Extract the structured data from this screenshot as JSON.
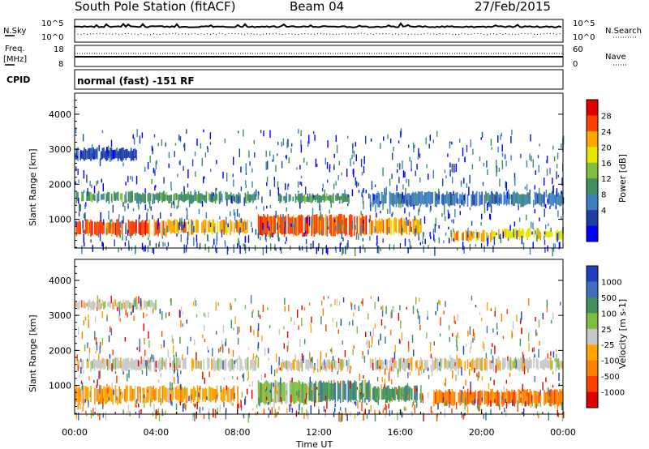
{
  "header": {
    "station": "South Pole Station (fitACF)",
    "beam": "Beam 04",
    "date": "27/Feb/2015"
  },
  "top_panel": {
    "left_label": "N.Sky",
    "left_ticks": [
      "10^5",
      "10^0"
    ],
    "right_label": "N.Search",
    "right_ticks": [
      "10^5",
      "10^0"
    ]
  },
  "freq_panel": {
    "left_label_1": "Freq.",
    "left_label_2": "[MHz]",
    "left_ticks": [
      "18",
      "8"
    ],
    "right_label": "Nave",
    "right_ticks": [
      "60",
      "0"
    ]
  },
  "cpid_panel": {
    "label": "CPID",
    "text": "normal (fast) -151 RF"
  },
  "colors": {
    "power_scale": [
      "#0000ff",
      "#1f3fa8",
      "#3f7fbf",
      "#3f8f5f",
      "#7fbf3f",
      "#e6e600",
      "#ffa500",
      "#ff4000",
      "#e00000"
    ],
    "velocity_scale": [
      "#1f3fc0",
      "#3f6fbf",
      "#3f8f5f",
      "#7fbf3f",
      "#c8c8c8",
      "#ffa500",
      "#ff7f00",
      "#ff4000",
      "#e00000"
    ]
  },
  "chart_data": [
    {
      "type": "heatmap",
      "title": "Power",
      "ylabel": "Slant Range [km]",
      "yticks": [
        1000,
        2000,
        3000,
        4000
      ],
      "ylim": [
        180,
        4600
      ],
      "colorbar_label": "Power [dB]",
      "colorbar_ticks": [
        "4",
        "8",
        "12",
        "16",
        "20",
        "24",
        "28"
      ],
      "bands": [
        {
          "x0": 0.0,
          "x1": 4.5,
          "r0": 550,
          "r1": 950,
          "level": 7
        },
        {
          "x0": 4.5,
          "x1": 8.5,
          "r0": 600,
          "r1": 950,
          "level": 6
        },
        {
          "x0": 9.0,
          "x1": 14.5,
          "r0": 550,
          "r1": 1100,
          "level": 7
        },
        {
          "x0": 14.5,
          "x1": 17.0,
          "r0": 600,
          "r1": 1000,
          "level": 6
        },
        {
          "x0": 0.0,
          "x1": 9.0,
          "r0": 1500,
          "r1": 1750,
          "level": 3
        },
        {
          "x0": 10.0,
          "x1": 13.5,
          "r0": 1500,
          "r1": 1700,
          "level": 3
        },
        {
          "x0": 14.5,
          "x1": 24.0,
          "r0": 1400,
          "r1": 1750,
          "level": 2
        },
        {
          "x0": 0.0,
          "x1": 3.0,
          "r0": 2700,
          "r1": 3000,
          "level": 1
        },
        {
          "x0": 18.5,
          "x1": 20.5,
          "r0": 400,
          "r1": 650,
          "level": 6
        },
        {
          "x0": 20.5,
          "x1": 24.0,
          "r0": 450,
          "r1": 700,
          "level": 5
        }
      ]
    },
    {
      "type": "heatmap",
      "title": "Velocity",
      "ylabel": "Slant Range [km]",
      "yticks": [
        1000,
        2000,
        3000,
        4000
      ],
      "ylim": [
        180,
        4600
      ],
      "xlabel": "Time UT",
      "xticks": [
        "00:00",
        "04:00",
        "08:00",
        "12:00",
        "16:00",
        "20:00",
        "00:00"
      ],
      "colorbar_label": "Velocity [m s-1]",
      "colorbar_ticks": [
        "1000",
        "500",
        "100",
        "25",
        "-25",
        "-100",
        "-500",
        "-1000"
      ],
      "bands": [
        {
          "x0": 0.0,
          "x1": 9.0,
          "r0": 1450,
          "r1": 1750,
          "level": 4
        },
        {
          "x0": 10.0,
          "x1": 13.5,
          "r0": 1450,
          "r1": 1700,
          "level": 4
        },
        {
          "x0": 14.5,
          "x1": 24.0,
          "r0": 1450,
          "r1": 1750,
          "level": 4
        },
        {
          "x0": 0.0,
          "x1": 4.0,
          "r0": 3200,
          "r1": 3400,
          "level": 4
        },
        {
          "x0": 0.0,
          "x1": 2.5,
          "r0": 500,
          "r1": 950,
          "level": 5
        },
        {
          "x0": 2.5,
          "x1": 8.0,
          "r0": 550,
          "r1": 950,
          "level": 5
        },
        {
          "x0": 9.0,
          "x1": 11.5,
          "r0": 500,
          "r1": 1100,
          "level": 3
        },
        {
          "x0": 11.5,
          "x1": 14.5,
          "r0": 550,
          "r1": 1100,
          "level": 2
        },
        {
          "x0": 14.5,
          "x1": 17.0,
          "r0": 550,
          "r1": 950,
          "level": 2
        },
        {
          "x0": 17.5,
          "x1": 24.0,
          "r0": 450,
          "r1": 850,
          "level": 6
        }
      ]
    }
  ]
}
